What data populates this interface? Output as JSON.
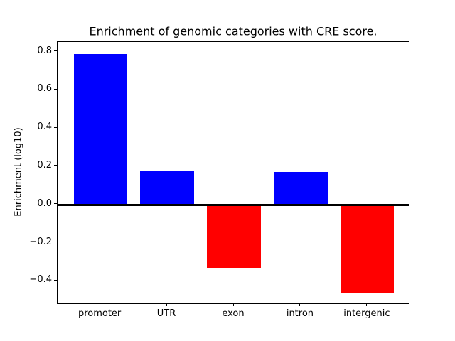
{
  "chart_data": {
    "type": "bar",
    "title": "Enrichment of genomic categories with CRE score.",
    "xlabel": "",
    "ylabel": "Enrichment (log10)",
    "categories": [
      "promoter",
      "UTR",
      "exon",
      "intron",
      "intergenic"
    ],
    "values": [
      0.79,
      0.18,
      -0.33,
      0.17,
      -0.46
    ],
    "bar_width": 0.8,
    "xlim": [
      -0.64,
      4.64
    ],
    "ylim": [
      -0.5225,
      0.8525
    ],
    "yticks": [
      0.8,
      0.6,
      0.4,
      0.2,
      0.0,
      -0.2,
      -0.4
    ],
    "ytick_labels": [
      "0.8",
      "0.6",
      "0.4",
      "0.2",
      "0.0",
      "−0.2",
      "−0.4"
    ],
    "grid": false,
    "legend": null,
    "zero_line": true,
    "colors": {
      "positive_bar": "#0000ff",
      "negative_bar": "#ff0000",
      "axis": "#000000",
      "zero_line": "#000000",
      "background": "#ffffff"
    }
  }
}
